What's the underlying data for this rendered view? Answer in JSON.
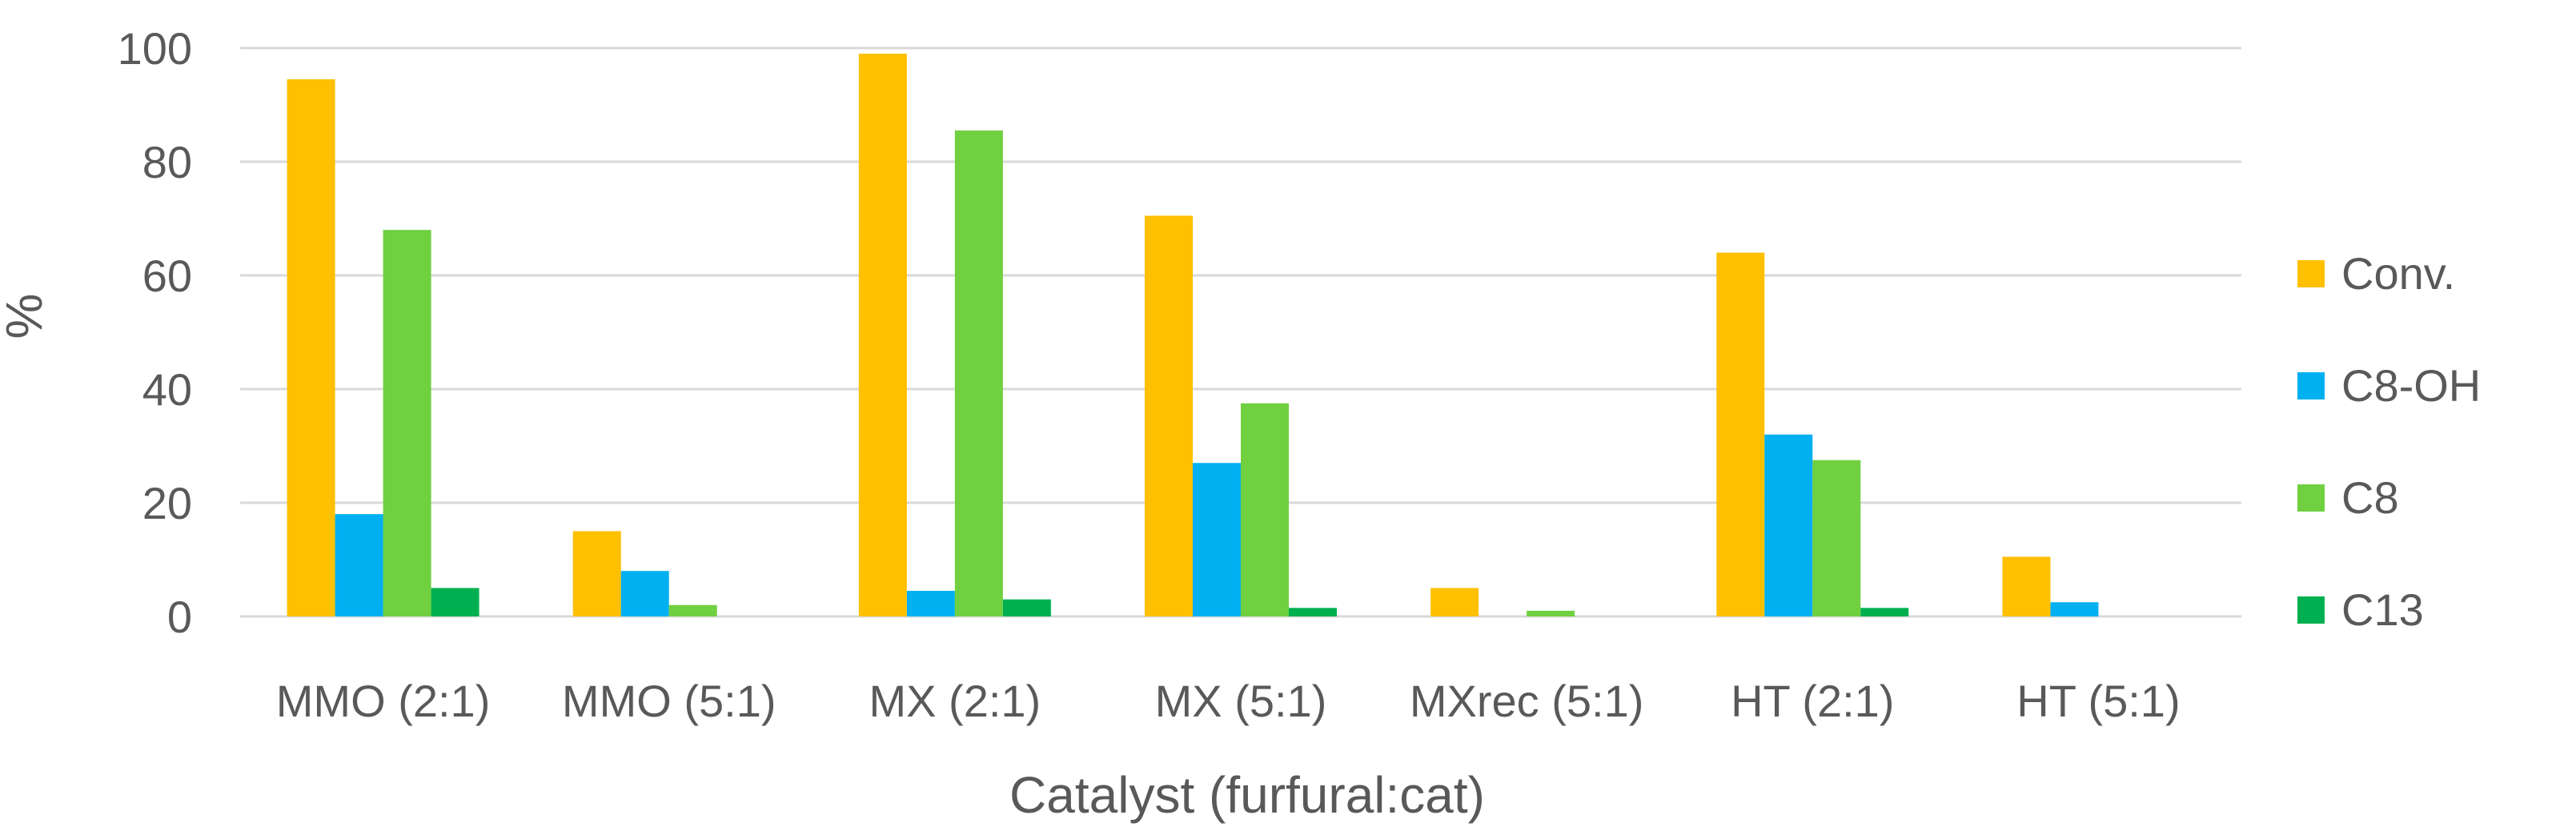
{
  "chart_data": {
    "type": "bar",
    "title": "",
    "xlabel": "Catalyst (furfural:cat)",
    "ylabel": "%",
    "ylim": [
      0,
      100
    ],
    "yticks": [
      0,
      20,
      40,
      60,
      80,
      100
    ],
    "grid": true,
    "legend_position": "right",
    "categories": [
      "MMO (2:1)",
      "MMO (5:1)",
      "MX (2:1)",
      "MX (5:1)",
      "MXrec (5:1)",
      "HT (2:1)",
      "HT (5:1)"
    ],
    "series": [
      {
        "name": "Conv.",
        "color": "#FFC000",
        "values": [
          94.5,
          15,
          99,
          70.5,
          5,
          64,
          10.5
        ]
      },
      {
        "name": "C8-OH",
        "color": "#00B0F0",
        "values": [
          18,
          8,
          4.5,
          27,
          0,
          32,
          2.5
        ]
      },
      {
        "name": "C8",
        "color": "#70D040",
        "values": [
          68,
          2,
          85.5,
          37.5,
          1,
          27.5,
          0
        ]
      },
      {
        "name": "C13",
        "color": "#00B050",
        "values": [
          5,
          0,
          3,
          1.5,
          0,
          1.5,
          0
        ]
      }
    ]
  }
}
